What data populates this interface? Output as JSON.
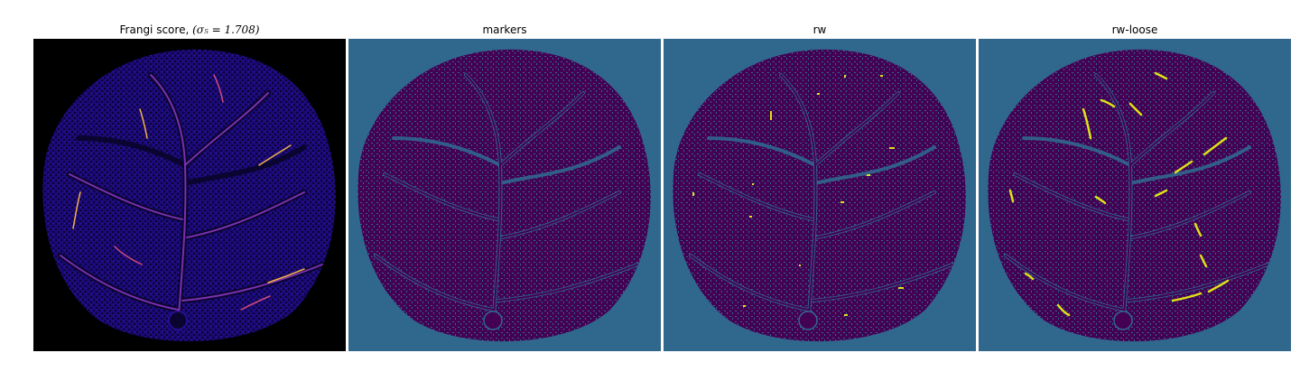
{
  "panels": [
    {
      "title_text": "Frangi score, ",
      "title_math": "(σ₅ = 1.708)",
      "background": "#000000",
      "vessel_color": "#2a10a0",
      "highlight_colors": [
        "#7a2fb0",
        "#d04a7a",
        "#f2b14a"
      ]
    },
    {
      "title": "markers",
      "background": "#30678d",
      "fill": "#440154"
    },
    {
      "title": "rw",
      "background": "#30678d",
      "fill": "#440154",
      "highlight": "#dde318"
    },
    {
      "title": "rw-loose",
      "background": "#30678d",
      "fill": "#440154",
      "highlight": "#dde318"
    }
  ]
}
